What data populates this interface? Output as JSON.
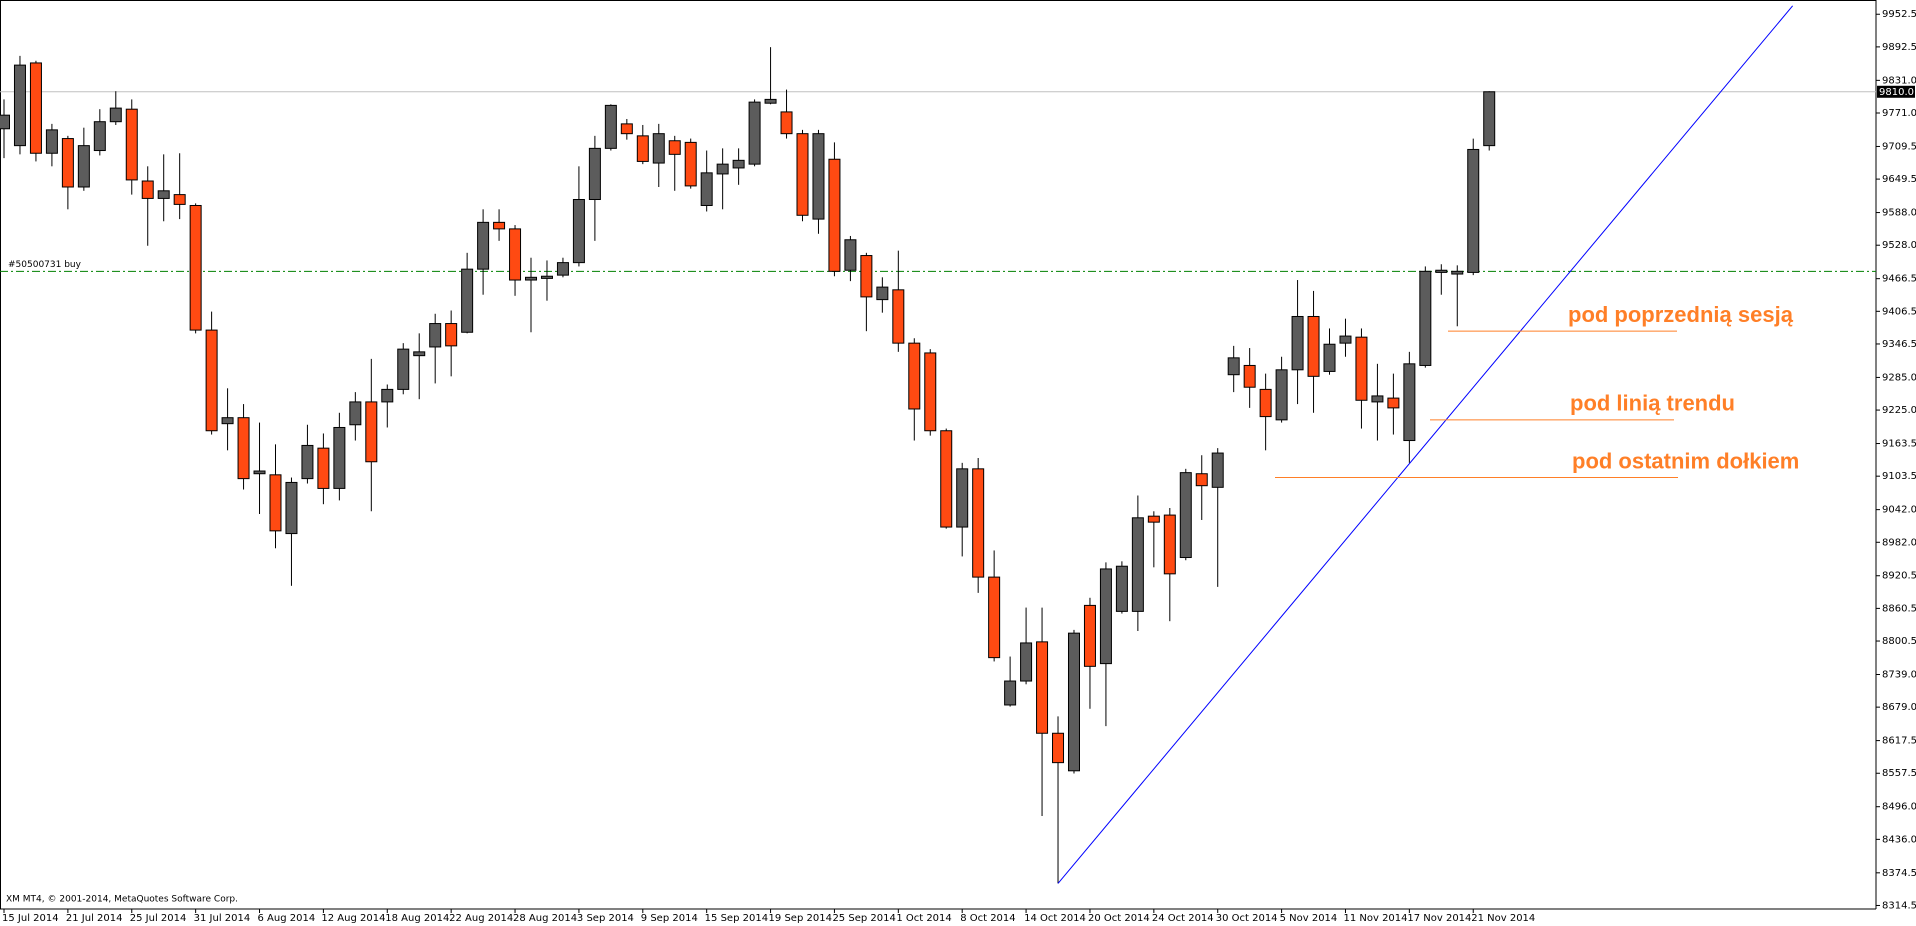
{
  "chart_data": {
    "type": "candlestick",
    "categories": [
      "15 Jul 2014",
      null,
      null,
      null,
      "21 Jul 2014",
      null,
      null,
      null,
      "25 Jul 2014",
      null,
      null,
      null,
      "31 Jul 2014",
      null,
      null,
      null,
      "6 Aug 2014",
      null,
      null,
      null,
      "12 Aug 2014",
      null,
      null,
      null,
      "18 Aug 2014",
      null,
      null,
      null,
      "22 Aug 2014",
      null,
      null,
      null,
      "28 Aug 2014",
      null,
      null,
      null,
      "3 Sep 2014",
      null,
      null,
      null,
      "9 Sep 2014",
      null,
      null,
      null,
      "15 Sep 2014",
      null,
      null,
      null,
      "19 Sep 2014",
      null,
      null,
      null,
      "25 Sep 2014",
      null,
      null,
      null,
      "1 Oct 2014",
      null,
      null,
      null,
      "8 Oct 2014",
      null,
      null,
      null,
      "14 Oct 2014",
      null,
      null,
      null,
      "20 Oct 2014",
      null,
      null,
      null,
      "24 Oct 2014",
      null,
      null,
      null,
      "30 Oct 2014",
      null,
      null,
      null,
      "5 Nov 2014",
      null,
      null,
      null,
      "11 Nov 2014",
      null,
      null,
      null,
      "17 Nov 2014",
      null,
      null,
      null,
      "21 Nov 2014",
      null
    ],
    "open": [
      9742,
      9711,
      9863,
      9697,
      9724,
      9635,
      9702,
      9755,
      9778,
      9646,
      9614,
      9621,
      9601,
      9372,
      9200,
      9211,
      9108,
      9106,
      8998,
      9099,
      9155,
      9081,
      9198,
      9240,
      9240,
      9263,
      9325,
      9341,
      9384,
      9368,
      9484,
      9570,
      9558,
      9464,
      9467,
      9473,
      9496,
      9612,
      9706,
      9751,
      9729,
      9679,
      9720,
      9717,
      9601,
      9659,
      9670,
      9677,
      9789,
      9773,
      9733,
      9576,
      9686,
      9482,
      9509,
      9428,
      9446,
      9348,
      9330,
      9187,
      9010,
      9117,
      8918,
      8683,
      8727,
      8799,
      8631,
      8562,
      8866,
      8759,
      8855,
      8855,
      9030,
      9032,
      8954,
      9108,
      9083,
      9290,
      9307,
      9263,
      9207,
      9299,
      9397,
      9296,
      9348,
      9359,
      9240,
      9247,
      9169,
      9307,
      9478,
      9475,
      9478,
      9711
    ],
    "high": [
      9796,
      9876,
      9867,
      9751,
      9729,
      9744,
      9778,
      9811,
      9796,
      9673,
      9695,
      9697,
      9605,
      9406,
      9265,
      9236,
      9202,
      9162,
      9101,
      9198,
      9182,
      9220,
      9258,
      9319,
      9272,
      9348,
      9366,
      9402,
      9408,
      9514,
      9594,
      9594,
      9565,
      9505,
      9500,
      9505,
      9673,
      9729,
      9787,
      9760,
      9749,
      9751,
      9729,
      9724,
      9702,
      9706,
      9706,
      9796,
      9892,
      9814,
      9740,
      9740,
      9717,
      9545,
      9514,
      9469,
      9518,
      9357,
      9337,
      9191,
      9128,
      9137,
      8967,
      8772,
      8862,
      8862,
      8662,
      8821,
      8880,
      8945,
      8947,
      9068,
      9039,
      9045,
      9117,
      9142,
      9155,
      9343,
      9339,
      9292,
      9323,
      9464,
      9444,
      9375,
      9393,
      9375,
      9310,
      9292,
      9332,
      9489,
      9493,
      9491,
      9724,
      9811
    ],
    "low": [
      9688,
      9695,
      9682,
      9673,
      9594,
      9628,
      9693,
      9749,
      9621,
      9527,
      9572,
      9576,
      9366,
      9180,
      9151,
      9079,
      9034,
      8971,
      8902,
      9090,
      9052,
      9059,
      9169,
      9039,
      9193,
      9254,
      9245,
      9274,
      9287,
      9366,
      9437,
      9536,
      9435,
      9368,
      9426,
      9469,
      9489,
      9536,
      9702,
      9722,
      9677,
      9635,
      9628,
      9632,
      9590,
      9594,
      9639,
      9673,
      9787,
      9724,
      9572,
      9549,
      9471,
      9462,
      9370,
      9404,
      9332,
      9169,
      9178,
      9007,
      8956,
      8889,
      8763,
      8680,
      8721,
      8479,
      8355,
      8557,
      8676,
      8644,
      8851,
      8819,
      8936,
      8837,
      8949,
      9023,
      8900,
      9258,
      9229,
      9151,
      9202,
      9236,
      9220,
      9290,
      9323,
      9191,
      9169,
      9180,
      9128,
      9303,
      9437,
      9379,
      9473,
      9702
    ],
    "close": [
      9767,
      9859,
      9697,
      9740,
      9635,
      9711,
      9755,
      9780,
      9648,
      9614,
      9628,
      9603,
      9372,
      9187,
      9211,
      9099,
      9113,
      9003,
      9092,
      9160,
      9081,
      9193,
      9240,
      9130,
      9263,
      9337,
      9332,
      9384,
      9343,
      9484,
      9570,
      9558,
      9464,
      9469,
      9471,
      9496,
      9612,
      9706,
      9785,
      9733,
      9682,
      9733,
      9695,
      9637,
      9661,
      9677,
      9684,
      9791,
      9796,
      9733,
      9583,
      9733,
      9480,
      9538,
      9433,
      9451,
      9348,
      9227,
      9187,
      9010,
      9117,
      8918,
      8770,
      8727,
      8797,
      8631,
      8577,
      8815,
      8754,
      8933,
      8938,
      9027,
      9019,
      8924,
      9110,
      9086,
      9146,
      9321,
      9267,
      9213,
      9299,
      9397,
      9287,
      9346,
      9361,
      9243,
      9251,
      9229,
      9310,
      9480,
      9482,
      9480,
      9704,
      9810
    ],
    "up_color": "#5c5c5c",
    "down_color": "#ff4a12",
    "ylim": [
      8308,
      9975
    ],
    "yticks": [
      9952.5,
      9892.5,
      {
        "value": 9831,
        "label": "9831.0"
      },
      {
        "value": 9771,
        "label": "9771.0"
      },
      9709.5,
      9649.5,
      {
        "value": 9588,
        "label": "9588.0"
      },
      {
        "value": 9528,
        "label": "9528.0"
      },
      9466.5,
      9406.5,
      9346.5,
      {
        "value": 9285,
        "label": "9285.0"
      },
      {
        "value": 9225,
        "label": "9225.0"
      },
      9163.5,
      9103.5,
      {
        "value": 9042,
        "label": "9042.0"
      },
      {
        "value": 8982,
        "label": "8982.0"
      },
      8920.5,
      8860.5,
      8800.5,
      {
        "value": 8739,
        "label": "8739.0"
      },
      {
        "value": 8679,
        "label": "8679.0"
      },
      8617.5,
      8557.5,
      {
        "value": 8496,
        "label": "8496.0"
      },
      {
        "value": 8436,
        "label": "8436.0"
      },
      8374.5,
      8314.5
    ],
    "current_price": {
      "value": 9810,
      "label": "9810.0"
    },
    "order_line": {
      "value": 9480,
      "label": "#50500731 buy",
      "color": "#008000"
    },
    "trendline": {
      "x": [
        66,
        112
      ],
      "y": [
        8355,
        9968
      ],
      "color": "#0000ff"
    },
    "annotations": [
      {
        "text": "pod poprzednią sesją",
        "y": 9370,
        "color": "#ff7f27"
      },
      {
        "text": "pod linią trendu",
        "y": 9207,
        "color": "#ff7f27"
      },
      {
        "text": "pod ostatnim dołkiem",
        "y": 9101,
        "color": "#ff7f27"
      }
    ],
    "footer": "XM MT4, © 2001-2014, MetaQuotes Software Corp."
  }
}
